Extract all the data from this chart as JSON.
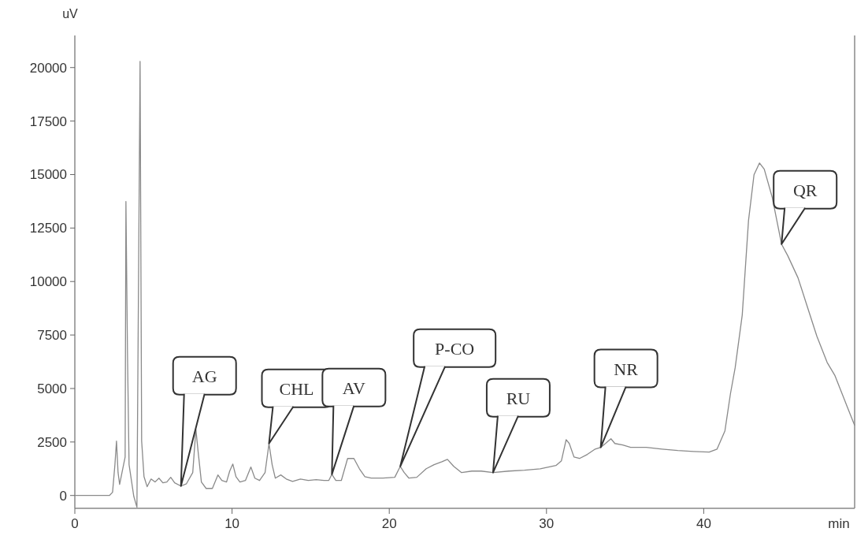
{
  "chart_data": {
    "type": "line",
    "xlabel": "min",
    "ylabel": "uV",
    "xlim": [
      0,
      49.6
    ],
    "ylim": [
      -600,
      21500
    ],
    "xticks": [
      0,
      10,
      20,
      30,
      40
    ],
    "yticks": [
      0,
      2500,
      5000,
      7500,
      10000,
      12500,
      15000,
      17500,
      20000
    ],
    "grid": false,
    "marker": "none",
    "line_style": "solid",
    "x": [
      0,
      2.2,
      2.4,
      2.55,
      2.65,
      2.75,
      2.85,
      3.0,
      3.2,
      3.25,
      3.35,
      3.45,
      3.6,
      3.75,
      3.95,
      4.15,
      4.25,
      4.4,
      4.6,
      4.85,
      5.1,
      5.35,
      5.6,
      5.85,
      6.1,
      6.35,
      6.75,
      7.1,
      7.5,
      7.7,
      7.85,
      8.05,
      8.35,
      8.75,
      9.1,
      9.35,
      9.65,
      9.85,
      10.05,
      10.25,
      10.5,
      10.85,
      11.2,
      11.45,
      11.75,
      12.1,
      12.35,
      12.55,
      12.75,
      13.1,
      13.45,
      13.85,
      14.35,
      14.85,
      15.35,
      15.85,
      16.15,
      16.35,
      16.6,
      16.95,
      17.35,
      17.75,
      18.1,
      18.45,
      18.85,
      19.6,
      20.35,
      20.7,
      20.95,
      21.25,
      21.75,
      22.35,
      22.85,
      23.35,
      23.7,
      24.1,
      24.6,
      25.25,
      25.85,
      26.6,
      27.6,
      28.6,
      29.6,
      30.6,
      30.95,
      31.25,
      31.45,
      31.75,
      32.1,
      32.6,
      33.1,
      33.45,
      33.75,
      34.1,
      34.35,
      34.85,
      35.35,
      36.35,
      37.35,
      38.35,
      39.35,
      40.35,
      40.85,
      41.35,
      41.7,
      42.0,
      42.45,
      42.85,
      43.2,
      43.55,
      43.85,
      44.35,
      44.95,
      45.35,
      46.0,
      46.6,
      47.2,
      47.85,
      48.35,
      49.1,
      49.6
    ],
    "series": [
      {
        "color": "#8a8a8a",
        "values": [
          0,
          0,
          150,
          1440,
          2540,
          1070,
          520,
          1070,
          1800,
          13740,
          6590,
          1440,
          700,
          -40,
          -550,
          20290,
          2540,
          880,
          410,
          770,
          630,
          810,
          590,
          630,
          850,
          590,
          440,
          550,
          1070,
          3090,
          1990,
          630,
          330,
          330,
          960,
          700,
          630,
          1140,
          1470,
          880,
          630,
          700,
          1330,
          810,
          700,
          1070,
          2430,
          1440,
          810,
          960,
          770,
          660,
          770,
          700,
          740,
          700,
          700,
          990,
          700,
          700,
          1730,
          1730,
          1250,
          880,
          810,
          810,
          850,
          1360,
          1070,
          810,
          850,
          1250,
          1440,
          1580,
          1690,
          1360,
          1070,
          1140,
          1140,
          1070,
          1140,
          1180,
          1250,
          1400,
          1620,
          2610,
          2430,
          1800,
          1730,
          1920,
          2170,
          2250,
          2430,
          2650,
          2430,
          2360,
          2250,
          2250,
          2170,
          2100,
          2060,
          2030,
          2170,
          3020,
          4750,
          5970,
          8430,
          12850,
          14990,
          15540,
          15250,
          13960,
          11750,
          11200,
          10170,
          8800,
          7440,
          6220,
          5600,
          4200,
          3280
        ]
      }
    ],
    "annotations": [
      {
        "text": "AG",
        "x": 6.75,
        "y": 440
      },
      {
        "text": "CHL",
        "x": 12.35,
        "y": 2430
      },
      {
        "text": "AV",
        "x": 16.35,
        "y": 990
      },
      {
        "text": "P-CO",
        "x": 20.7,
        "y": 1360
      },
      {
        "text": "RU",
        "x": 26.6,
        "y": 1070
      },
      {
        "text": "NR",
        "x": 33.45,
        "y": 2250
      },
      {
        "text": "QR",
        "x": 44.95,
        "y": 11750
      }
    ]
  }
}
